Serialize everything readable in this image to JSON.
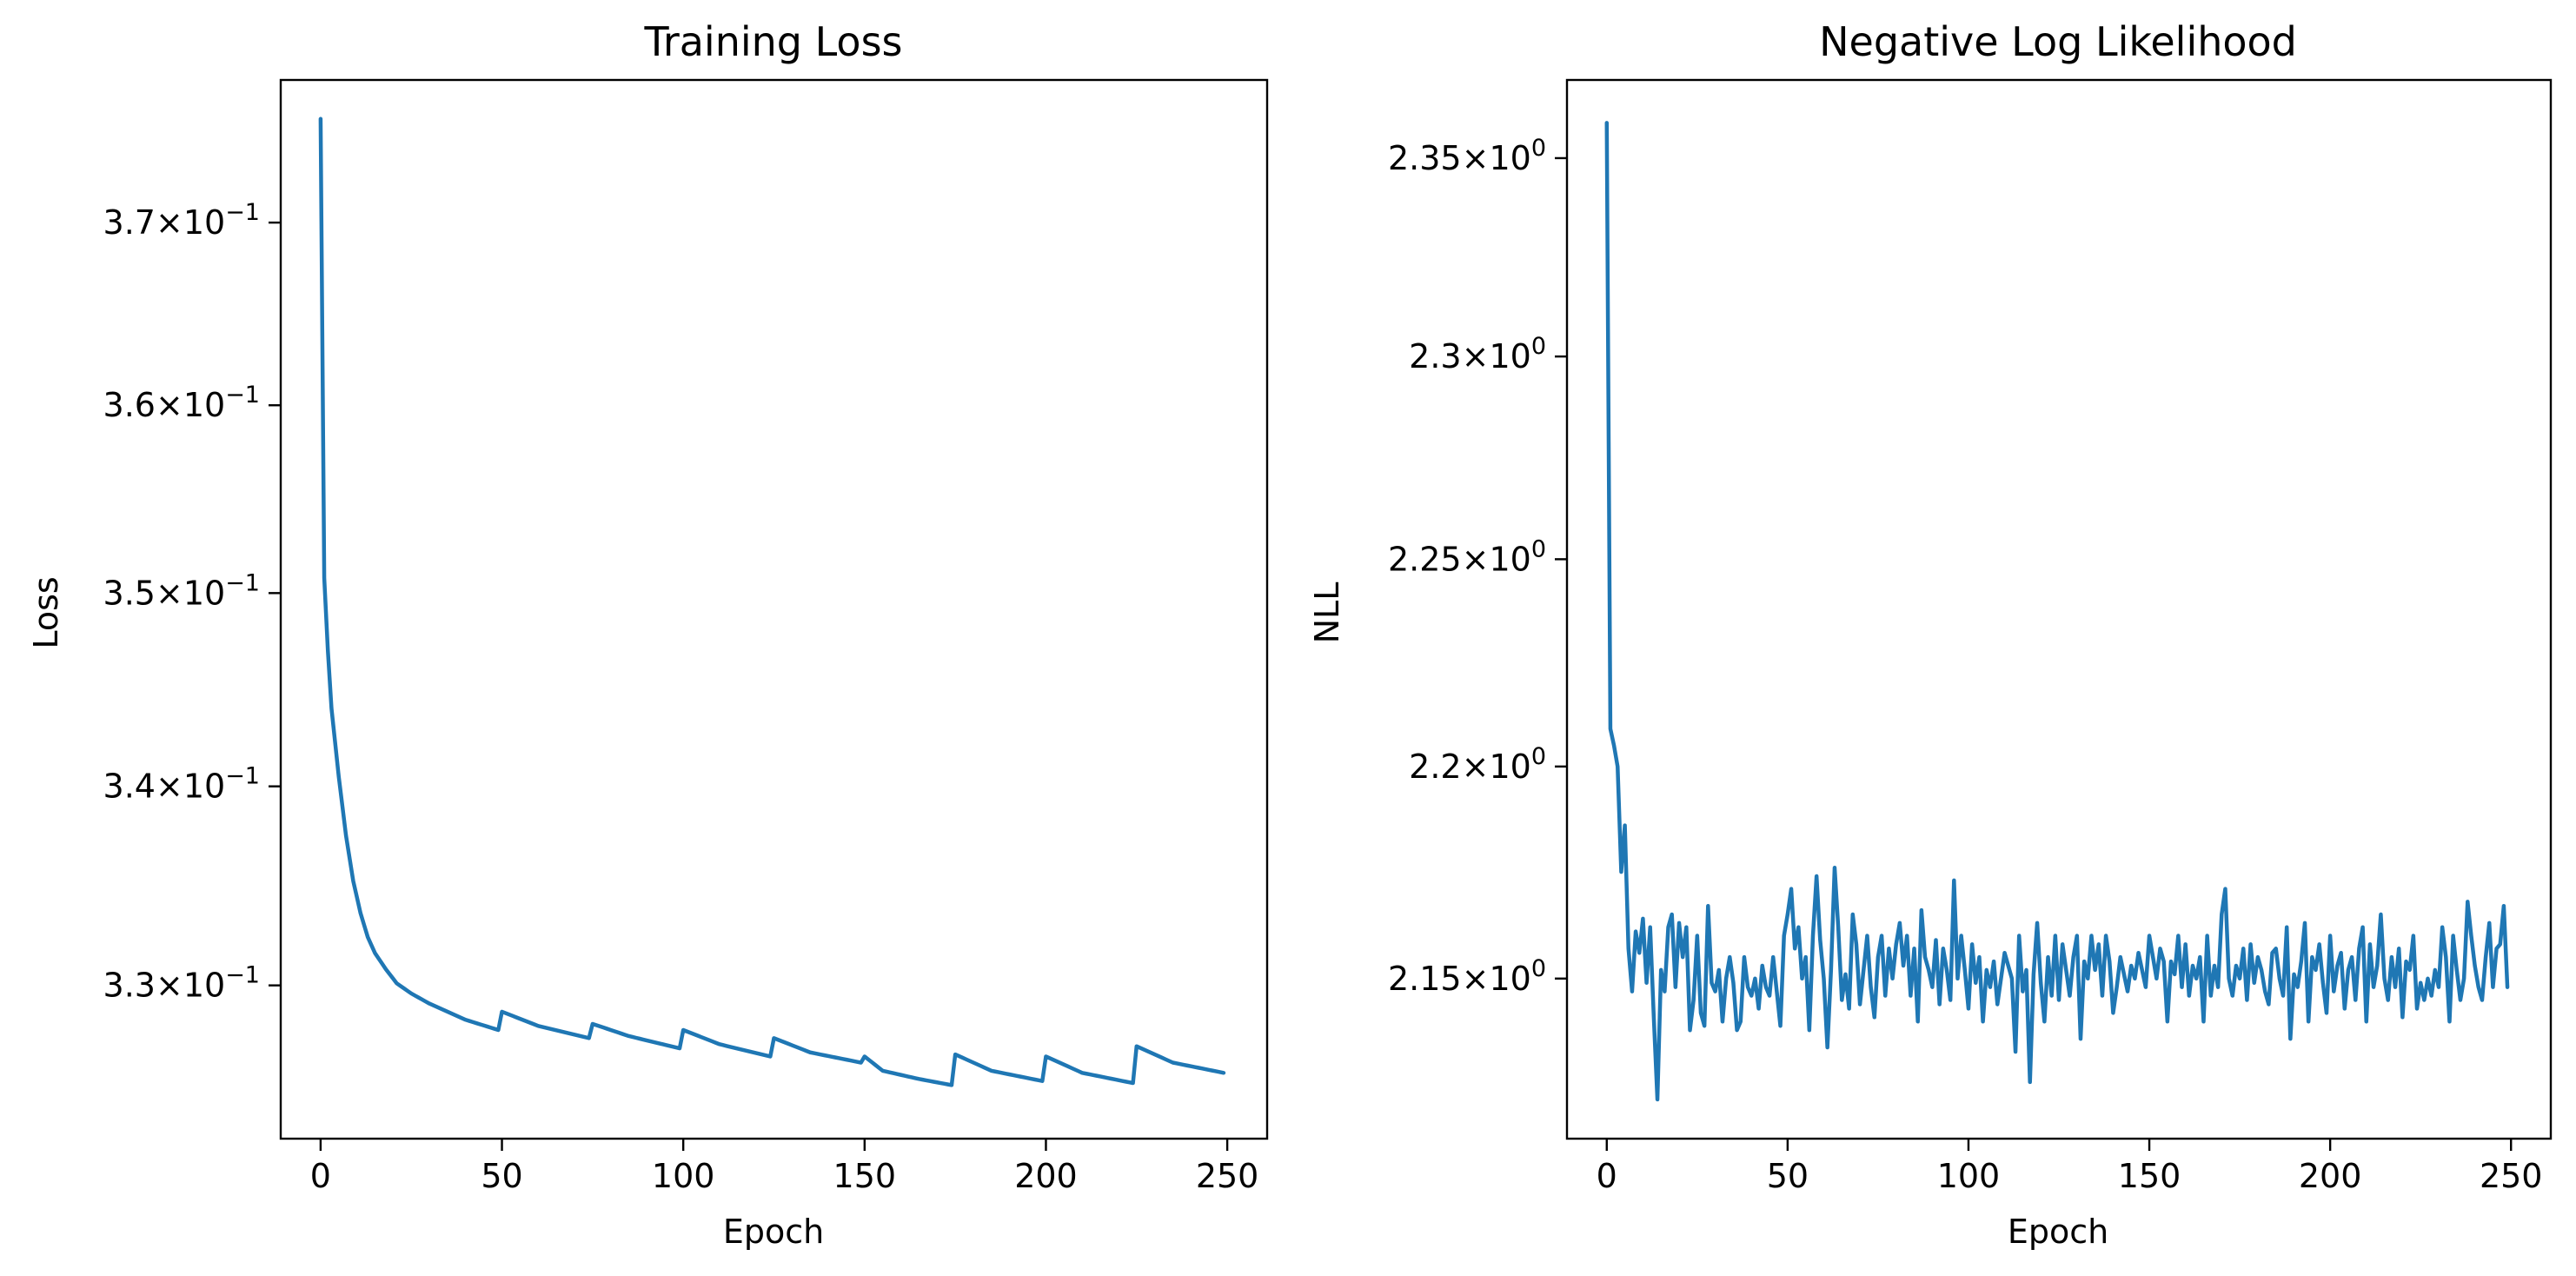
{
  "chart_data": [
    {
      "type": "line",
      "title": "Training Loss",
      "xlabel": "Epoch",
      "ylabel": "Loss",
      "yscale": "log",
      "grid": false,
      "xlim": [
        -11,
        261
      ],
      "ylim": [
        0.3225,
        0.378
      ],
      "xticks": [
        {
          "value": 0,
          "label": "0"
        },
        {
          "value": 50,
          "label": "50"
        },
        {
          "value": 100,
          "label": "100"
        },
        {
          "value": 150,
          "label": "150"
        },
        {
          "value": 200,
          "label": "200"
        },
        {
          "value": 250,
          "label": "250"
        }
      ],
      "yticks": [
        {
          "value": 0.33,
          "mantissa": "3.3",
          "base": "10",
          "exponent": "−1"
        },
        {
          "value": 0.34,
          "mantissa": "3.4",
          "base": "10",
          "exponent": "−1"
        },
        {
          "value": 0.35,
          "mantissa": "3.5",
          "base": "10",
          "exponent": "−1"
        },
        {
          "value": 0.36,
          "mantissa": "3.6",
          "base": "10",
          "exponent": "−1"
        },
        {
          "value": 0.37,
          "mantissa": "3.7",
          "base": "10",
          "exponent": "−1"
        }
      ],
      "color": "#1f77b4",
      "keypoints": [
        [
          0,
          0.3758
        ],
        [
          1,
          0.3508
        ],
        [
          2,
          0.347
        ],
        [
          3,
          0.344
        ],
        [
          5,
          0.3405
        ],
        [
          7,
          0.3375
        ],
        [
          9,
          0.3352
        ],
        [
          11,
          0.3336
        ],
        [
          13,
          0.3324
        ],
        [
          15,
          0.3316
        ],
        [
          18,
          0.3308
        ],
        [
          21,
          0.3301
        ],
        [
          25,
          0.3296
        ],
        [
          30,
          0.3291
        ],
        [
          35,
          0.3287
        ],
        [
          40,
          0.3283
        ],
        [
          49,
          0.3278
        ],
        [
          50,
          0.3287
        ],
        [
          60,
          0.328
        ],
        [
          74,
          0.3274
        ],
        [
          75,
          0.3281
        ],
        [
          85,
          0.3275
        ],
        [
          99,
          0.3269
        ],
        [
          100,
          0.3278
        ],
        [
          110,
          0.3271
        ],
        [
          124,
          0.3265
        ],
        [
          125,
          0.3274
        ],
        [
          135,
          0.3267
        ],
        [
          149,
          0.3262
        ],
        [
          150,
          0.3265
        ],
        [
          155,
          0.3258
        ],
        [
          165,
          0.3254
        ],
        [
          174,
          0.3251
        ],
        [
          175,
          0.3266
        ],
        [
          185,
          0.3258
        ],
        [
          199,
          0.3253
        ],
        [
          200,
          0.3265
        ],
        [
          210,
          0.3257
        ],
        [
          224,
          0.3252
        ],
        [
          225,
          0.327
        ],
        [
          235,
          0.3262
        ],
        [
          249,
          0.3257
        ]
      ]
    },
    {
      "type": "line",
      "title": "Negative Log Likelihood",
      "xlabel": "Epoch",
      "ylabel": "NLL",
      "yscale": "log",
      "grid": false,
      "xlim": [
        -11,
        261
      ],
      "ylim": [
        2.113,
        2.37
      ],
      "xticks": [
        {
          "value": 0,
          "label": "0"
        },
        {
          "value": 50,
          "label": "50"
        },
        {
          "value": 100,
          "label": "100"
        },
        {
          "value": 150,
          "label": "150"
        },
        {
          "value": 200,
          "label": "200"
        },
        {
          "value": 250,
          "label": "250"
        }
      ],
      "yticks": [
        {
          "value": 2.15,
          "mantissa": "2.15",
          "base": "10",
          "exponent": "0"
        },
        {
          "value": 2.2,
          "mantissa": "2.2",
          "base": "10",
          "exponent": "0"
        },
        {
          "value": 2.25,
          "mantissa": "2.25",
          "base": "10",
          "exponent": "0"
        },
        {
          "value": 2.3,
          "mantissa": "2.3",
          "base": "10",
          "exponent": "0"
        },
        {
          "value": 2.35,
          "mantissa": "2.35",
          "base": "10",
          "exponent": "0"
        }
      ],
      "color": "#1f77b4",
      "x_start": 0,
      "y": [
        2.359,
        2.209,
        2.205,
        2.2,
        2.175,
        2.186,
        2.157,
        2.147,
        2.161,
        2.156,
        2.164,
        2.149,
        2.162,
        2.141,
        2.122,
        2.152,
        2.147,
        2.162,
        2.165,
        2.148,
        2.163,
        2.155,
        2.162,
        2.138,
        2.145,
        2.16,
        2.142,
        2.139,
        2.167,
        2.149,
        2.147,
        2.152,
        2.14,
        2.15,
        2.155,
        2.149,
        2.138,
        2.14,
        2.155,
        2.148,
        2.146,
        2.15,
        2.143,
        2.153,
        2.148,
        2.146,
        2.155,
        2.147,
        2.139,
        2.16,
        2.165,
        2.171,
        2.157,
        2.162,
        2.15,
        2.155,
        2.138,
        2.16,
        2.174,
        2.159,
        2.15,
        2.134,
        2.152,
        2.176,
        2.162,
        2.145,
        2.151,
        2.143,
        2.165,
        2.158,
        2.144,
        2.152,
        2.16,
        2.148,
        2.141,
        2.155,
        2.16,
        2.146,
        2.157,
        2.15,
        2.158,
        2.163,
        2.153,
        2.16,
        2.146,
        2.157,
        2.14,
        2.166,
        2.155,
        2.152,
        2.148,
        2.159,
        2.144,
        2.157,
        2.152,
        2.145,
        2.173,
        2.15,
        2.16,
        2.152,
        2.143,
        2.158,
        2.149,
        2.155,
        2.14,
        2.152,
        2.148,
        2.154,
        2.144,
        2.15,
        2.156,
        2.153,
        2.15,
        2.133,
        2.16,
        2.147,
        2.152,
        2.126,
        2.151,
        2.163,
        2.149,
        2.14,
        2.155,
        2.146,
        2.16,
        2.145,
        2.158,
        2.152,
        2.146,
        2.155,
        2.16,
        2.136,
        2.154,
        2.15,
        2.16,
        2.152,
        2.158,
        2.146,
        2.16,
        2.154,
        2.142,
        2.148,
        2.155,
        2.151,
        2.147,
        2.153,
        2.15,
        2.156,
        2.152,
        2.148,
        2.16,
        2.155,
        2.15,
        2.157,
        2.154,
        2.14,
        2.154,
        2.151,
        2.16,
        2.148,
        2.158,
        2.146,
        2.153,
        2.15,
        2.155,
        2.14,
        2.16,
        2.146,
        2.153,
        2.148,
        2.165,
        2.171,
        2.15,
        2.146,
        2.153,
        2.15,
        2.157,
        2.145,
        2.158,
        2.149,
        2.155,
        2.152,
        2.147,
        2.144,
        2.156,
        2.157,
        2.15,
        2.146,
        2.162,
        2.136,
        2.151,
        2.148,
        2.154,
        2.163,
        2.14,
        2.155,
        2.152,
        2.158,
        2.149,
        2.142,
        2.16,
        2.147,
        2.153,
        2.156,
        2.143,
        2.152,
        2.155,
        2.145,
        2.157,
        2.162,
        2.14,
        2.158,
        2.148,
        2.153,
        2.165,
        2.15,
        2.145,
        2.155,
        2.148,
        2.157,
        2.141,
        2.154,
        2.152,
        2.16,
        2.143,
        2.149,
        2.145,
        2.15,
        2.146,
        2.152,
        2.148,
        2.162,
        2.155,
        2.14,
        2.16,
        2.152,
        2.145,
        2.15,
        2.168,
        2.16,
        2.153,
        2.148,
        2.145,
        2.155,
        2.163,
        2.148,
        2.157,
        2.158,
        2.167,
        2.148
      ]
    }
  ]
}
